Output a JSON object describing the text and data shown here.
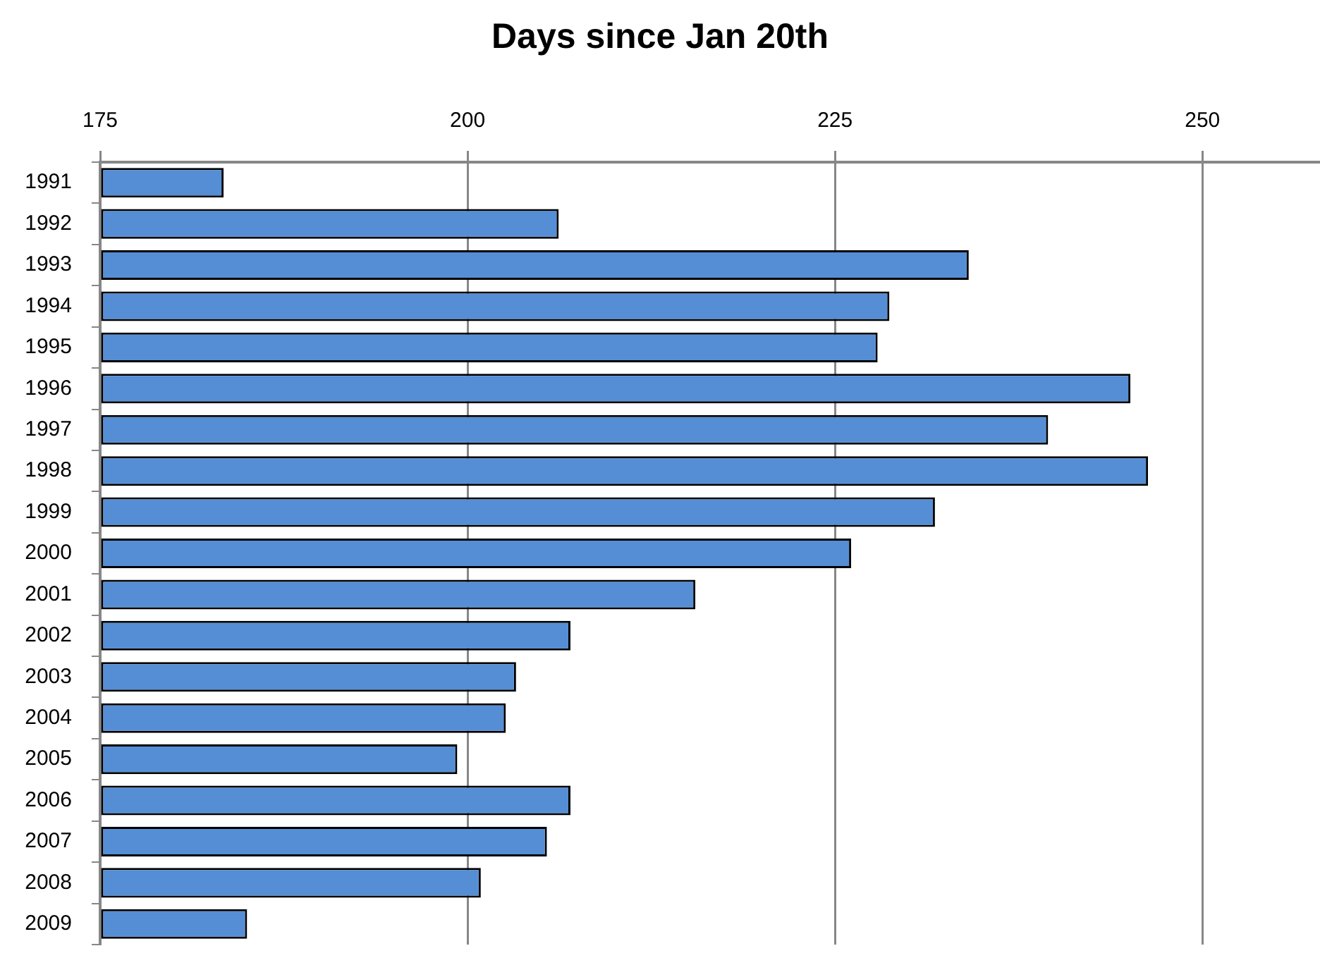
{
  "chart_data": {
    "type": "bar",
    "orientation": "horizontal",
    "title": "Days since Jan 20th",
    "categories": [
      "1991",
      "1992",
      "1993",
      "1994",
      "1995",
      "1996",
      "1997",
      "1998",
      "1999",
      "2000",
      "2001",
      "2002",
      "2003",
      "2004",
      "2005",
      "2006",
      "2007",
      "2008",
      "2009"
    ],
    "values": [
      183.4,
      206.2,
      234.1,
      228.7,
      227.9,
      245.1,
      239.5,
      246.3,
      231.8,
      226.1,
      215.5,
      207.0,
      203.3,
      202.6,
      199.3,
      207.0,
      205.4,
      200.9,
      185.0
    ],
    "color": "#558ed5",
    "xlim": [
      175,
      258
    ],
    "xticks": [
      175,
      200,
      225,
      250
    ],
    "grid": "x",
    "legend": false
  }
}
